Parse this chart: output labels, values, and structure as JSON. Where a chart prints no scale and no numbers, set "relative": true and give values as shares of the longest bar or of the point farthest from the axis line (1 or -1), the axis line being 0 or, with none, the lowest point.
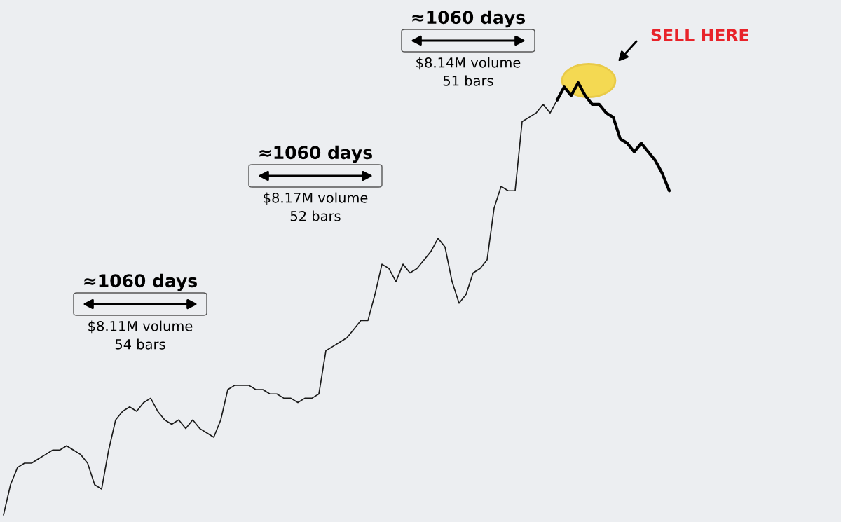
{
  "chart_data": {
    "type": "line",
    "relative": true,
    "categories": [
      null,
      null,
      null,
      null,
      null,
      null,
      null,
      null,
      null,
      null,
      null,
      null,
      null,
      null,
      null,
      null,
      null,
      null,
      null,
      null,
      null,
      null,
      null,
      null,
      null,
      null,
      null,
      null,
      null,
      null,
      null,
      null,
      null,
      null,
      null,
      null,
      null,
      null,
      null,
      null,
      null,
      null,
      null,
      null,
      null,
      null,
      null,
      null,
      null,
      null,
      null,
      null,
      null,
      null,
      null,
      null,
      null,
      null,
      null,
      null,
      null,
      null,
      null,
      null,
      null,
      null,
      null,
      null,
      null,
      null,
      null,
      null,
      null,
      null,
      null,
      null,
      null,
      null,
      null,
      null,
      null,
      null,
      null,
      null,
      null,
      null,
      null,
      null,
      null,
      null,
      null,
      null,
      null,
      null,
      null,
      null
    ],
    "series": [
      {
        "color": "#1a1a1a",
        "values": [
          0,
          0.07,
          0.11,
          0.12,
          0.12,
          0.13,
          0.14,
          0.15,
          0.15,
          0.16,
          0.15,
          0.14,
          0.12,
          0.07,
          0.06,
          0.15,
          0.22,
          0.24,
          0.25,
          0.24,
          0.26,
          0.27,
          0.24,
          0.22,
          0.21,
          0.22,
          0.2,
          0.22,
          0.2,
          0.19,
          0.18,
          0.22,
          0.29,
          0.3,
          0.3,
          0.3,
          0.29,
          0.29,
          0.28,
          0.28,
          0.27,
          0.27,
          0.26,
          0.27,
          0.27,
          0.28,
          0.38,
          0.39,
          0.4,
          0.41,
          0.43,
          0.45,
          0.45,
          0.51,
          0.58,
          0.57,
          0.54,
          0.58,
          0.56,
          0.57,
          0.59,
          0.61,
          0.64,
          0.62,
          0.54,
          0.49,
          0.51,
          0.56,
          0.57,
          0.59,
          0.71,
          0.76,
          0.75,
          0.75,
          0.91,
          0.92,
          0.93,
          0.95,
          0.93,
          0.96,
          null,
          null,
          null,
          null,
          null,
          null,
          null,
          null,
          null,
          null,
          null,
          null,
          null,
          null,
          null,
          null
        ]
      },
      {
        "color": "#000000",
        "values": [
          null,
          null,
          null,
          null,
          null,
          null,
          null,
          null,
          null,
          null,
          null,
          null,
          null,
          null,
          null,
          null,
          null,
          null,
          null,
          null,
          null,
          null,
          null,
          null,
          null,
          null,
          null,
          null,
          null,
          null,
          null,
          null,
          null,
          null,
          null,
          null,
          null,
          null,
          null,
          null,
          null,
          null,
          null,
          null,
          null,
          null,
          null,
          null,
          null,
          null,
          null,
          null,
          null,
          null,
          null,
          null,
          null,
          null,
          null,
          null,
          null,
          null,
          null,
          null,
          null,
          null,
          null,
          null,
          null,
          null,
          null,
          null,
          null,
          null,
          null,
          null,
          null,
          null,
          null,
          0.96,
          0.99,
          0.97,
          1.0,
          0.97,
          0.95,
          0.95,
          0.93,
          0.92,
          0.87,
          0.86,
          0.84,
          0.86,
          0.84,
          0.82,
          0.79,
          0.75
        ]
      }
    ],
    "annotations": [
      "≈1060 days",
      "$8.11M volume",
      "54 bars",
      "≈1060 days",
      "$8.17M volume",
      "52 bars",
      "≈1060 days",
      "$8.14M volume",
      "51 bars",
      "SELL HERE"
    ]
  }
}
